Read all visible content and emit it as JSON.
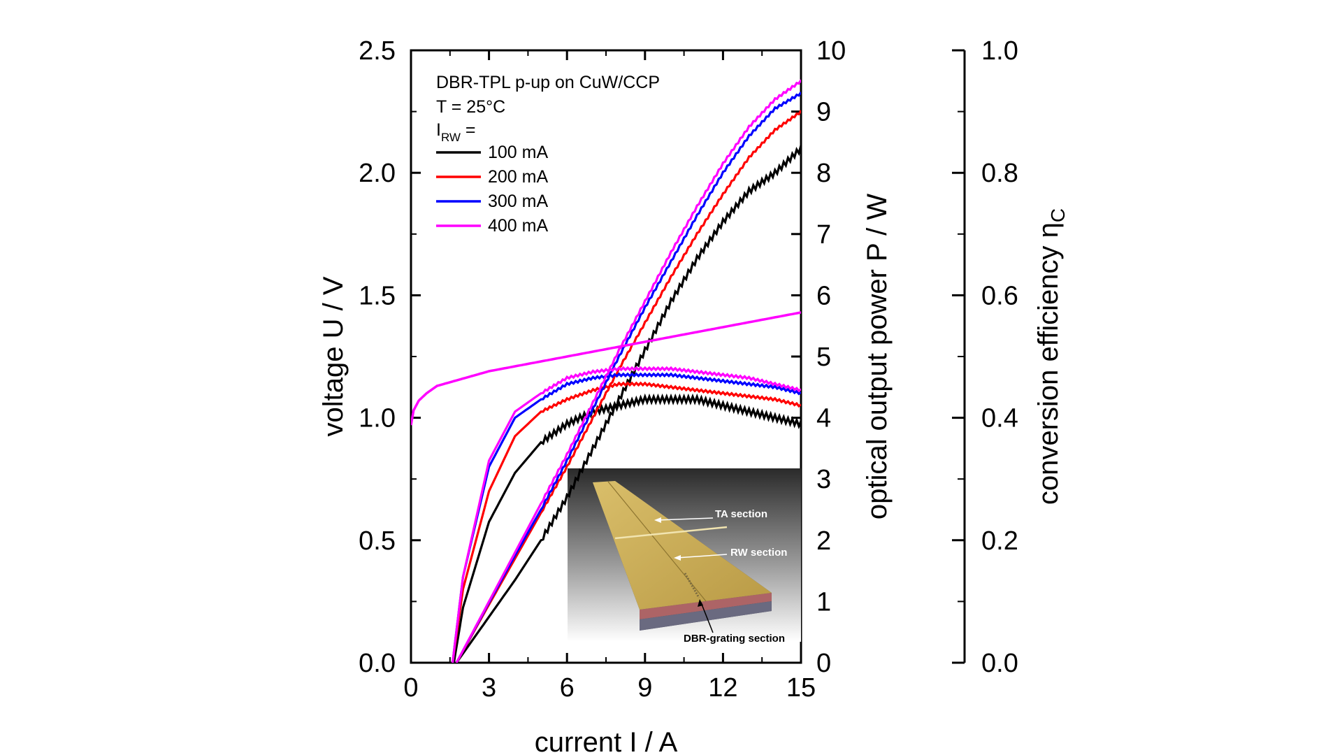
{
  "chart_data": {
    "type": "line",
    "title": "",
    "xlabel": "current I / A",
    "ylabel_left": "voltage U / V",
    "ylabel_right1": "optical output power P / W",
    "ylabel_right2": "conversion efficiency η",
    "ylabel_right2_sub": "C",
    "xlim": [
      0,
      15
    ],
    "ylim_left": [
      0,
      2.5
    ],
    "ylim_right1": [
      0,
      10
    ],
    "ylim_right2": [
      0,
      1.0
    ],
    "x_ticks": [
      "0",
      "3",
      "6",
      "9",
      "12",
      "15"
    ],
    "y_left_ticks": [
      "0.0",
      "0.5",
      "1.0",
      "1.5",
      "2.0",
      "2.5"
    ],
    "y_right1_ticks": [
      "0",
      "1",
      "2",
      "3",
      "4",
      "5",
      "6",
      "7",
      "8",
      "9",
      "10"
    ],
    "y_right2_ticks": [
      "0.0",
      "0.2",
      "0.4",
      "0.6",
      "0.8",
      "1.0"
    ],
    "grid": false,
    "legend_placement": "top-left",
    "annotations": {
      "device": "DBR-TPL p-up on CuW/CCP",
      "temperature": "T = 25°C",
      "irw_main": "I",
      "irw_sub": "RW",
      "irw_eq": " ="
    },
    "voltage_curve": {
      "color": "#ff00ff",
      "x": [
        0,
        0.1,
        0.3,
        0.6,
        1,
        2,
        3,
        4,
        5,
        6,
        7,
        8,
        9,
        10,
        11,
        12,
        13,
        14,
        15
      ],
      "y": [
        0.97,
        1.03,
        1.07,
        1.1,
        1.13,
        1.16,
        1.19,
        1.21,
        1.23,
        1.25,
        1.27,
        1.29,
        1.31,
        1.33,
        1.35,
        1.37,
        1.39,
        1.41,
        1.43
      ]
    },
    "series": [
      {
        "name": "100 mA",
        "color": "#000000",
        "power": {
          "x": [
            1.75,
            3,
            4,
            5,
            6,
            7,
            8,
            9,
            10,
            11,
            12,
            13,
            14,
            15
          ],
          "y": [
            0,
            0.75,
            1.35,
            2.0,
            2.7,
            3.5,
            4.3,
            5.1,
            5.9,
            6.6,
            7.2,
            7.7,
            8.0,
            8.4
          ]
        },
        "efficiency": {
          "x": [
            1.65,
            2,
            3,
            4,
            5,
            6,
            7,
            8,
            9,
            10,
            11,
            12,
            13,
            14,
            15
          ],
          "y": [
            0,
            0.09,
            0.23,
            0.31,
            0.36,
            0.39,
            0.41,
            0.42,
            0.43,
            0.43,
            0.43,
            0.42,
            0.41,
            0.4,
            0.39
          ]
        }
      },
      {
        "name": "200 mA",
        "color": "#ff0000",
        "power": {
          "x": [
            1.75,
            3,
            4,
            5,
            6,
            7,
            8,
            9,
            10,
            11,
            12,
            13,
            14,
            15
          ],
          "y": [
            0,
            0.95,
            1.7,
            2.45,
            3.2,
            4.0,
            4.8,
            5.55,
            6.3,
            7.0,
            7.65,
            8.25,
            8.7,
            9.0
          ]
        },
        "efficiency": {
          "x": [
            1.6,
            2,
            3,
            4,
            5,
            6,
            7,
            8,
            9,
            10,
            11,
            12,
            13,
            14,
            15
          ],
          "y": [
            0,
            0.12,
            0.28,
            0.37,
            0.41,
            0.43,
            0.445,
            0.455,
            0.455,
            0.45,
            0.445,
            0.44,
            0.435,
            0.43,
            0.42
          ]
        }
      },
      {
        "name": "300 mA",
        "color": "#0000ff",
        "power": {
          "x": [
            1.75,
            3,
            4,
            5,
            6,
            7,
            8,
            9,
            10,
            11,
            12,
            13,
            14,
            15
          ],
          "y": [
            0,
            0.98,
            1.75,
            2.5,
            3.3,
            4.15,
            5.0,
            5.8,
            6.55,
            7.3,
            8.0,
            8.6,
            9.05,
            9.3
          ]
        },
        "efficiency": {
          "x": [
            1.6,
            2,
            3,
            4,
            5,
            6,
            7,
            8,
            9,
            10,
            11,
            12,
            13,
            14,
            15
          ],
          "y": [
            0,
            0.14,
            0.32,
            0.4,
            0.43,
            0.455,
            0.465,
            0.47,
            0.47,
            0.47,
            0.465,
            0.46,
            0.455,
            0.45,
            0.44
          ]
        }
      },
      {
        "name": "400 mA",
        "color": "#ff00ff",
        "power": {
          "x": [
            1.75,
            3,
            4,
            5,
            6,
            7,
            8,
            9,
            10,
            11,
            12,
            13,
            14,
            15
          ],
          "y": [
            0,
            1.0,
            1.8,
            2.6,
            3.4,
            4.25,
            5.1,
            5.9,
            6.7,
            7.45,
            8.15,
            8.75,
            9.2,
            9.5
          ]
        },
        "efficiency": {
          "x": [
            1.6,
            2,
            3,
            4,
            5,
            6,
            7,
            8,
            9,
            10,
            11,
            12,
            13,
            14,
            15
          ],
          "y": [
            0,
            0.14,
            0.33,
            0.41,
            0.44,
            0.465,
            0.475,
            0.48,
            0.48,
            0.48,
            0.475,
            0.47,
            0.465,
            0.455,
            0.445
          ]
        }
      }
    ],
    "inset": {
      "labels": [
        "TA section",
        "RW section",
        "DBR-grating section"
      ]
    }
  }
}
